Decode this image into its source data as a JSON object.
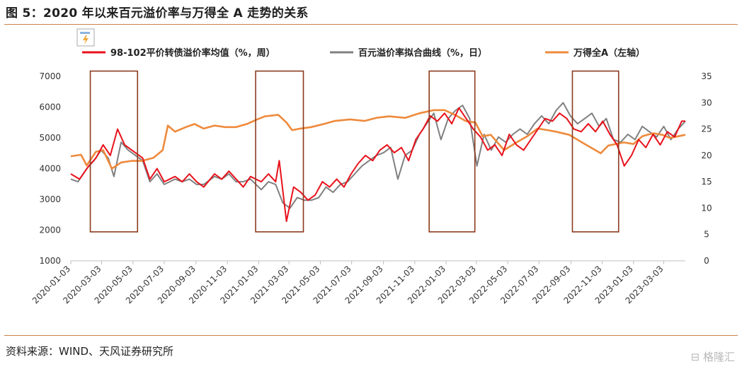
{
  "header": {
    "title": "图 5：2020 年以来百元溢价率与万得全 A 走势的关系"
  },
  "footer": {
    "source": "资料来源：WIND、天风证券研究所",
    "watermark": "格隆汇"
  },
  "colors": {
    "red": "#e8111b",
    "gray": "#808080",
    "orange": "#ee8a3c",
    "box": "#8b3a1e",
    "rule": "#c9814a"
  },
  "icons": [
    "chart-placeholder-icon"
  ],
  "chart_data": {
    "type": "line",
    "left_axis": {
      "ylim": [
        1000,
        7000
      ],
      "ticks": [
        "1000",
        "2000",
        "3000",
        "4000",
        "5000",
        "6000",
        "7000"
      ]
    },
    "right_axis": {
      "ylim": [
        0,
        35
      ],
      "ticks": [
        "0",
        "5",
        "10",
        "15",
        "20",
        "25",
        "30",
        "35"
      ]
    },
    "x_ticks": [
      "2020-01-03",
      "2020-03-03",
      "2020-05-03",
      "2020-07-03",
      "2020-09-03",
      "2020-11-03",
      "2021-01-03",
      "2021-03-03",
      "2021-05-03",
      "2021-07-03",
      "2021-09-03",
      "2021-11-03",
      "2022-01-03",
      "2022-03-03",
      "2022-05-03",
      "2022-07-03",
      "2022-09-03",
      "2022-11-03",
      "2023-01-03",
      "2023-03-03"
    ],
    "x_range": [
      "2020-01-03",
      "2023-04-14"
    ],
    "series": [
      {
        "name": "98-102平价转债溢价率均值（%，周）",
        "axis": "right",
        "color": "#e8111b",
        "points": [
          [
            "2020-01-03",
            16.5
          ],
          [
            "2020-01-20",
            15.5
          ],
          [
            "2020-02-07",
            18.0
          ],
          [
            "2020-02-21",
            19.5
          ],
          [
            "2020-03-06",
            22.0
          ],
          [
            "2020-03-20",
            20.0
          ],
          [
            "2020-04-03",
            25.0
          ],
          [
            "2020-04-17",
            22.0
          ],
          [
            "2020-05-01",
            21.0
          ],
          [
            "2020-05-22",
            19.5
          ],
          [
            "2020-06-05",
            15.5
          ],
          [
            "2020-06-19",
            17.5
          ],
          [
            "2020-07-03",
            15.0
          ],
          [
            "2020-07-24",
            16.0
          ],
          [
            "2020-08-07",
            15.0
          ],
          [
            "2020-08-21",
            16.5
          ],
          [
            "2020-09-04",
            15.0
          ],
          [
            "2020-09-18",
            14.0
          ],
          [
            "2020-10-09",
            16.5
          ],
          [
            "2020-10-23",
            15.5
          ],
          [
            "2020-11-06",
            17.0
          ],
          [
            "2020-11-20",
            15.5
          ],
          [
            "2020-12-04",
            14.0
          ],
          [
            "2020-12-18",
            16.0
          ],
          [
            "2021-01-08",
            15.0
          ],
          [
            "2021-01-22",
            16.5
          ],
          [
            "2021-02-05",
            15.0
          ],
          [
            "2021-02-12",
            19.0
          ],
          [
            "2021-02-26",
            7.5
          ],
          [
            "2021-03-12",
            14.0
          ],
          [
            "2021-03-26",
            13.0
          ],
          [
            "2021-04-09",
            11.5
          ],
          [
            "2021-04-23",
            12.5
          ],
          [
            "2021-05-07",
            15.0
          ],
          [
            "2021-05-21",
            14.0
          ],
          [
            "2021-06-04",
            15.5
          ],
          [
            "2021-06-18",
            14.0
          ],
          [
            "2021-07-02",
            16.5
          ],
          [
            "2021-07-16",
            18.5
          ],
          [
            "2021-07-30",
            20.0
          ],
          [
            "2021-08-13",
            19.0
          ],
          [
            "2021-08-27",
            21.0
          ],
          [
            "2021-09-10",
            22.0
          ],
          [
            "2021-09-24",
            20.5
          ],
          [
            "2021-10-08",
            21.5
          ],
          [
            "2021-10-22",
            19.0
          ],
          [
            "2021-11-05",
            23.0
          ],
          [
            "2021-11-19",
            25.0
          ],
          [
            "2021-12-03",
            27.5
          ],
          [
            "2021-12-17",
            26.5
          ],
          [
            "2021-12-31",
            28.0
          ],
          [
            "2022-01-14",
            26.0
          ],
          [
            "2022-01-28",
            29.0
          ],
          [
            "2022-02-11",
            27.0
          ],
          [
            "2022-02-25",
            25.0
          ],
          [
            "2022-03-11",
            23.5
          ],
          [
            "2022-03-25",
            21.0
          ],
          [
            "2022-04-08",
            22.0
          ],
          [
            "2022-04-22",
            20.0
          ],
          [
            "2022-05-06",
            24.0
          ],
          [
            "2022-05-20",
            22.0
          ],
          [
            "2022-06-03",
            21.0
          ],
          [
            "2022-06-17",
            23.0
          ],
          [
            "2022-07-01",
            25.0
          ],
          [
            "2022-07-15",
            27.0
          ],
          [
            "2022-07-29",
            26.5
          ],
          [
            "2022-08-12",
            28.0
          ],
          [
            "2022-08-26",
            27.0
          ],
          [
            "2022-09-09",
            25.0
          ],
          [
            "2022-09-23",
            24.5
          ],
          [
            "2022-10-07",
            26.0
          ],
          [
            "2022-10-21",
            24.5
          ],
          [
            "2022-11-04",
            26.5
          ],
          [
            "2022-11-18",
            24.0
          ],
          [
            "2022-12-02",
            22.0
          ],
          [
            "2022-12-16",
            18.0
          ],
          [
            "2022-12-30",
            20.0
          ],
          [
            "2023-01-13",
            23.0
          ],
          [
            "2023-01-27",
            21.5
          ],
          [
            "2023-02-10",
            24.0
          ],
          [
            "2023-02-24",
            22.0
          ],
          [
            "2023-03-10",
            24.5
          ],
          [
            "2023-03-24",
            23.5
          ],
          [
            "2023-04-07",
            26.5
          ],
          [
            "2023-04-14",
            26.5
          ]
        ]
      },
      {
        "name": "百元溢价率拟合曲线（%，日）",
        "axis": "right",
        "color": "#808080",
        "points": [
          [
            "2020-01-03",
            15.5
          ],
          [
            "2020-01-17",
            15.0
          ],
          [
            "2020-02-03",
            17.5
          ],
          [
            "2020-02-17",
            19.0
          ],
          [
            "2020-03-02",
            21.0
          ],
          [
            "2020-03-16",
            19.5
          ],
          [
            "2020-03-27",
            16.0
          ],
          [
            "2020-04-10",
            22.5
          ],
          [
            "2020-04-24",
            21.0
          ],
          [
            "2020-05-08",
            20.0
          ],
          [
            "2020-05-22",
            19.0
          ],
          [
            "2020-06-05",
            15.0
          ],
          [
            "2020-06-19",
            16.5
          ],
          [
            "2020-07-03",
            14.5
          ],
          [
            "2020-07-24",
            15.5
          ],
          [
            "2020-08-07",
            15.0
          ],
          [
            "2020-08-21",
            15.5
          ],
          [
            "2020-09-04",
            14.5
          ],
          [
            "2020-09-18",
            14.5
          ],
          [
            "2020-10-09",
            16.0
          ],
          [
            "2020-10-23",
            15.5
          ],
          [
            "2020-11-06",
            16.5
          ],
          [
            "2020-11-20",
            15.0
          ],
          [
            "2020-12-04",
            15.0
          ],
          [
            "2020-12-18",
            15.5
          ],
          [
            "2021-01-08",
            13.5
          ],
          [
            "2021-01-22",
            15.0
          ],
          [
            "2021-02-05",
            14.5
          ],
          [
            "2021-02-19",
            11.0
          ],
          [
            "2021-03-05",
            10.0
          ],
          [
            "2021-03-19",
            12.0
          ],
          [
            "2021-04-02",
            11.5
          ],
          [
            "2021-04-16",
            11.5
          ],
          [
            "2021-04-30",
            12.0
          ],
          [
            "2021-05-14",
            14.0
          ],
          [
            "2021-05-28",
            13.0
          ],
          [
            "2021-06-11",
            14.5
          ],
          [
            "2021-06-25",
            15.0
          ],
          [
            "2021-07-09",
            16.5
          ],
          [
            "2021-07-23",
            18.0
          ],
          [
            "2021-08-06",
            19.0
          ],
          [
            "2021-08-20",
            20.0
          ],
          [
            "2021-09-03",
            20.5
          ],
          [
            "2021-09-17",
            21.5
          ],
          [
            "2021-10-01",
            15.5
          ],
          [
            "2021-10-15",
            20.0
          ],
          [
            "2021-10-29",
            21.0
          ],
          [
            "2021-11-12",
            24.0
          ],
          [
            "2021-11-26",
            26.0
          ],
          [
            "2021-12-10",
            28.0
          ],
          [
            "2021-12-24",
            23.0
          ],
          [
            "2022-01-07",
            27.0
          ],
          [
            "2022-01-21",
            28.5
          ],
          [
            "2022-02-04",
            29.5
          ],
          [
            "2022-02-18",
            27.0
          ],
          [
            "2022-03-04",
            18.0
          ],
          [
            "2022-03-18",
            24.0
          ],
          [
            "2022-04-01",
            21.0
          ],
          [
            "2022-04-15",
            23.5
          ],
          [
            "2022-04-29",
            22.5
          ],
          [
            "2022-05-13",
            24.0
          ],
          [
            "2022-05-27",
            25.0
          ],
          [
            "2022-06-10",
            24.0
          ],
          [
            "2022-06-24",
            26.0
          ],
          [
            "2022-07-08",
            27.5
          ],
          [
            "2022-07-22",
            26.0
          ],
          [
            "2022-08-05",
            28.5
          ],
          [
            "2022-08-19",
            30.0
          ],
          [
            "2022-09-02",
            27.5
          ],
          [
            "2022-09-16",
            26.0
          ],
          [
            "2022-09-30",
            27.0
          ],
          [
            "2022-10-14",
            28.0
          ],
          [
            "2022-10-28",
            25.5
          ],
          [
            "2022-11-11",
            27.0
          ],
          [
            "2022-11-25",
            23.0
          ],
          [
            "2022-12-09",
            22.5
          ],
          [
            "2022-12-23",
            24.0
          ],
          [
            "2023-01-06",
            23.0
          ],
          [
            "2023-01-20",
            25.5
          ],
          [
            "2023-02-03",
            24.5
          ],
          [
            "2023-02-17",
            23.5
          ],
          [
            "2023-03-03",
            25.5
          ],
          [
            "2023-03-17",
            23.0
          ],
          [
            "2023-03-31",
            25.0
          ],
          [
            "2023-04-14",
            26.5
          ]
        ]
      },
      {
        "name": "万得全A（左轴）",
        "axis": "left",
        "color": "#ee8a3c",
        "points": [
          [
            "2020-01-03",
            4400
          ],
          [
            "2020-01-23",
            4450
          ],
          [
            "2020-02-03",
            4100
          ],
          [
            "2020-02-21",
            4550
          ],
          [
            "2020-03-06",
            4600
          ],
          [
            "2020-03-23",
            4000
          ],
          [
            "2020-04-10",
            4200
          ],
          [
            "2020-04-30",
            4250
          ],
          [
            "2020-05-20",
            4250
          ],
          [
            "2020-06-12",
            4350
          ],
          [
            "2020-06-30",
            4600
          ],
          [
            "2020-07-10",
            5400
          ],
          [
            "2020-07-24",
            5200
          ],
          [
            "2020-08-14",
            5350
          ],
          [
            "2020-08-31",
            5450
          ],
          [
            "2020-09-18",
            5300
          ],
          [
            "2020-10-09",
            5400
          ],
          [
            "2020-10-30",
            5350
          ],
          [
            "2020-11-20",
            5350
          ],
          [
            "2020-12-11",
            5450
          ],
          [
            "2020-12-31",
            5600
          ],
          [
            "2021-01-15",
            5700
          ],
          [
            "2021-02-10",
            5750
          ],
          [
            "2021-02-26",
            5500
          ],
          [
            "2021-03-09",
            5250
          ],
          [
            "2021-03-25",
            5300
          ],
          [
            "2021-04-15",
            5350
          ],
          [
            "2021-05-10",
            5450
          ],
          [
            "2021-05-31",
            5550
          ],
          [
            "2021-06-30",
            5600
          ],
          [
            "2021-07-28",
            5550
          ],
          [
            "2021-08-20",
            5650
          ],
          [
            "2021-09-14",
            5700
          ],
          [
            "2021-10-15",
            5650
          ],
          [
            "2021-11-12",
            5800
          ],
          [
            "2021-12-10",
            5900
          ],
          [
            "2021-12-31",
            5900
          ],
          [
            "2022-01-20",
            5750
          ],
          [
            "2022-02-10",
            5550
          ],
          [
            "2022-03-01",
            5500
          ],
          [
            "2022-03-15",
            5050
          ],
          [
            "2022-03-31",
            5100
          ],
          [
            "2022-04-26",
            4600
          ],
          [
            "2022-05-20",
            4850
          ],
          [
            "2022-06-10",
            5050
          ],
          [
            "2022-06-30",
            5300
          ],
          [
            "2022-07-20",
            5250
          ],
          [
            "2022-08-05",
            5200
          ],
          [
            "2022-08-31",
            5100
          ],
          [
            "2022-09-15",
            4950
          ],
          [
            "2022-09-30",
            4800
          ],
          [
            "2022-10-31",
            4500
          ],
          [
            "2022-11-15",
            4750
          ],
          [
            "2022-11-30",
            4800
          ],
          [
            "2022-12-15",
            4850
          ],
          [
            "2023-01-03",
            4800
          ],
          [
            "2023-01-20",
            5050
          ],
          [
            "2023-02-10",
            5150
          ],
          [
            "2023-02-28",
            5100
          ],
          [
            "2023-03-15",
            5000
          ],
          [
            "2023-03-31",
            5050
          ],
          [
            "2023-04-14",
            5100
          ]
        ]
      }
    ],
    "highlight_boxes": [
      {
        "from": "2020-02-10",
        "to": "2020-05-12",
        "right_from": 5.5,
        "right_to": 36
      },
      {
        "from": "2020-12-28",
        "to": "2021-03-31",
        "right_from": 5.5,
        "right_to": 36
      },
      {
        "from": "2021-12-01",
        "to": "2022-02-28",
        "right_from": 5.5,
        "right_to": 36
      },
      {
        "from": "2022-09-06",
        "to": "2022-12-05",
        "right_from": 5.5,
        "right_to": 36
      }
    ],
    "grid": false,
    "legend": "top"
  }
}
